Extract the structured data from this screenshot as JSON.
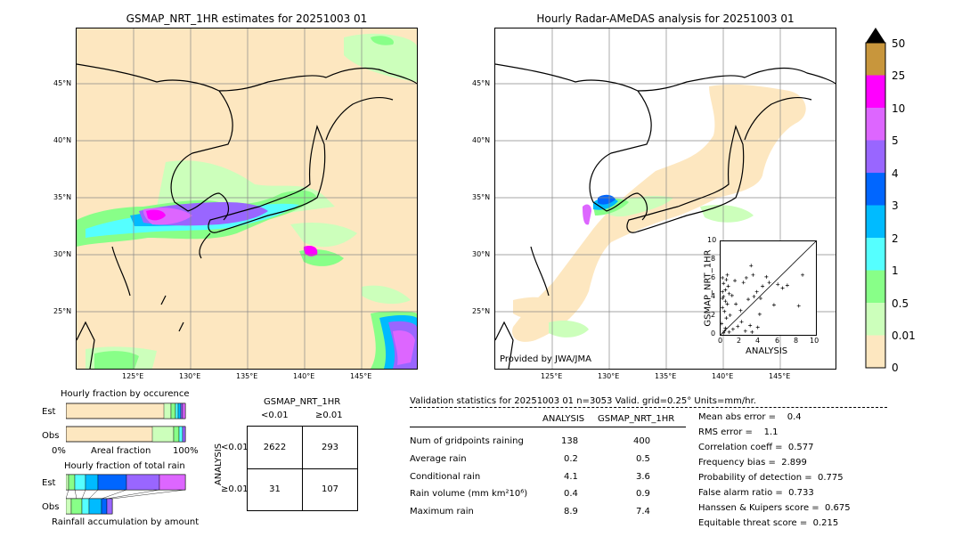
{
  "left_title": "GSMAP_NRT_1HR estimates for 20251003 01",
  "right_title": "Hourly Radar-AMeDAS analysis for 20251003 01",
  "map_lat_labels": [
    "45°N",
    "40°N",
    "35°N",
    "30°N",
    "25°N"
  ],
  "map_lon_labels": [
    "125°E",
    "130°E",
    "135°E",
    "140°E",
    "145°E"
  ],
  "provided_by": "Provided by JWA/JMA",
  "colorbar": {
    "labels": [
      "50",
      "25",
      "10",
      "5",
      "4",
      "3",
      "2",
      "1",
      "0.5",
      "0.01",
      "0"
    ],
    "colors": [
      "#c8963c",
      "#ff00ff",
      "#dd66ff",
      "#9966ff",
      "#0066ff",
      "#00bbff",
      "#55ffff",
      "#88ff88",
      "#ccffbb",
      "#fde7c0"
    ]
  },
  "scatter": {
    "xlabel": "ANALYSIS",
    "ylabel": "GSMAP_NRT_1HR",
    "ticks": [
      "0",
      "2",
      "4",
      "6",
      "8",
      "10"
    ]
  },
  "hourly_fraction": {
    "title1": "Hourly fraction by occurence",
    "title2": "Hourly fraction of total rain",
    "footer": "Rainfall accumulation by amount",
    "est_label": "Est",
    "obs_label": "Obs",
    "axis_left": "0%",
    "axis_mid": "Areal fraction",
    "axis_right": "100%"
  },
  "contingency": {
    "title": "GSMAP_NRT_1HR",
    "col1": "<0.01",
    "col2": "≥0.01",
    "row_axis": "ANALYSIS",
    "row1": "<0.01",
    "row2": "≥0.01",
    "v11": "2622",
    "v12": "293",
    "v21": "31",
    "v22": "107"
  },
  "validation": {
    "header": "Validation statistics for 20251003 01  n=3053 Valid. grid=0.25° Units=mm/hr.",
    "col_analysis": "ANALYSIS",
    "col_gsmap": "GSMAP_NRT_1HR",
    "rows": [
      {
        "label": "Num of gridpoints raining",
        "a": "138",
        "g": "400"
      },
      {
        "label": "Average rain",
        "a": "0.2",
        "g": "0.5"
      },
      {
        "label": "Conditional rain",
        "a": "4.1",
        "g": "3.6"
      },
      {
        "label": "Rain volume (mm km²10⁶)",
        "a": "0.4",
        "g": "0.9"
      },
      {
        "label": "Maximum rain",
        "a": "8.9",
        "g": "7.4"
      }
    ],
    "scores": [
      "Mean abs error =    0.4",
      "RMS error =    1.1",
      "Correlation coeff =  0.577",
      "Frequency bias =  2.899",
      "Probability of detection =  0.775",
      "False alarm ratio =  0.733",
      "Hanssen & Kuipers score =  0.675",
      "Equitable threat score =  0.215"
    ]
  },
  "chart_data": {
    "type": "scatter",
    "xlabel": "ANALYSIS",
    "ylabel": "GSMAP_NRT_1HR",
    "xlim": [
      0,
      10
    ],
    "ylim": [
      0,
      10
    ],
    "points": [
      [
        0.3,
        5.5
      ],
      [
        0.5,
        4.8
      ],
      [
        0.2,
        3.9
      ],
      [
        0.8,
        5.2
      ],
      [
        0.4,
        2.5
      ],
      [
        0.6,
        1.8
      ],
      [
        0.3,
        4.1
      ],
      [
        0.7,
        3.3
      ],
      [
        0.2,
        6.1
      ],
      [
        0.9,
        4.4
      ],
      [
        0.5,
        0.7
      ],
      [
        0.1,
        1.2
      ],
      [
        0.4,
        0.4
      ],
      [
        0.2,
        2.9
      ],
      [
        0.6,
        5.9
      ],
      [
        1.0,
        2.1
      ],
      [
        1.3,
        0.6
      ],
      [
        1.8,
        0.9
      ],
      [
        2.2,
        1.4
      ],
      [
        2.6,
        0.4
      ],
      [
        3.1,
        1.0
      ],
      [
        3.3,
        0.3
      ],
      [
        2.9,
        3.8
      ],
      [
        3.5,
        4.1
      ],
      [
        3.8,
        4.6
      ],
      [
        4.2,
        3.9
      ],
      [
        4.4,
        5.2
      ],
      [
        4.1,
        2.2
      ],
      [
        3.9,
        0.8
      ],
      [
        2.4,
        5.6
      ],
      [
        2.7,
        6.1
      ],
      [
        3.4,
        6.4
      ],
      [
        5.1,
        5.6
      ],
      [
        5.6,
        3.2
      ],
      [
        6.0,
        5.4
      ],
      [
        6.5,
        5.0
      ],
      [
        3.2,
        7.4
      ],
      [
        1.5,
        5.8
      ],
      [
        1.2,
        4.2
      ],
      [
        0.7,
        6.4
      ],
      [
        8.6,
        6.4
      ],
      [
        8.2,
        3.1
      ],
      [
        7.0,
        5.3
      ],
      [
        4.8,
        6.2
      ],
      [
        0.3,
        0.2
      ],
      [
        0.9,
        0.3
      ],
      [
        1.6,
        3.3
      ],
      [
        2.1,
        2.6
      ],
      [
        0.2,
        4.6
      ],
      [
        0.5,
        3.6
      ]
    ]
  }
}
